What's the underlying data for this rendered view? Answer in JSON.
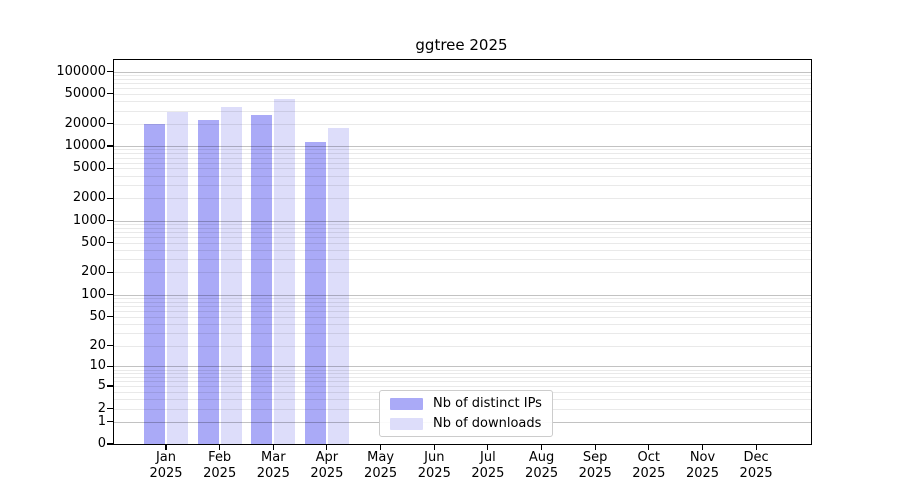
{
  "figure": {
    "background": "#ffffff",
    "axis_color": "#000000",
    "major_grid_color": "#c3c3c3",
    "minor_grid_color": "#eaeaea"
  },
  "chart_data": {
    "type": "bar",
    "title": "ggtree 2025",
    "xlabel": "",
    "ylabel": "",
    "grid": true,
    "y_scale": "log1p",
    "ylim": [
      0,
      140000
    ],
    "y_ticks": [
      0,
      1,
      2,
      5,
      10,
      20,
      50,
      100,
      200,
      500,
      1000,
      2000,
      5000,
      10000,
      20000,
      50000,
      100000
    ],
    "year": "2025",
    "months": [
      "Jan",
      "Feb",
      "Mar",
      "Apr",
      "May",
      "Jun",
      "Jul",
      "Aug",
      "Sep",
      "Oct",
      "Nov",
      "Dec"
    ],
    "legend_position": "inside-bottom-center",
    "series": [
      {
        "name": "Nb of distinct IPs",
        "color": "#aaaaf7",
        "values": [
          19800,
          22300,
          25800,
          11300,
          null,
          null,
          null,
          null,
          null,
          null,
          null,
          null
        ]
      },
      {
        "name": "Nb of downloads",
        "color": "#ddddfa",
        "values": [
          29000,
          33600,
          43100,
          17700,
          null,
          null,
          null,
          null,
          null,
          null,
          null,
          null
        ]
      }
    ]
  }
}
